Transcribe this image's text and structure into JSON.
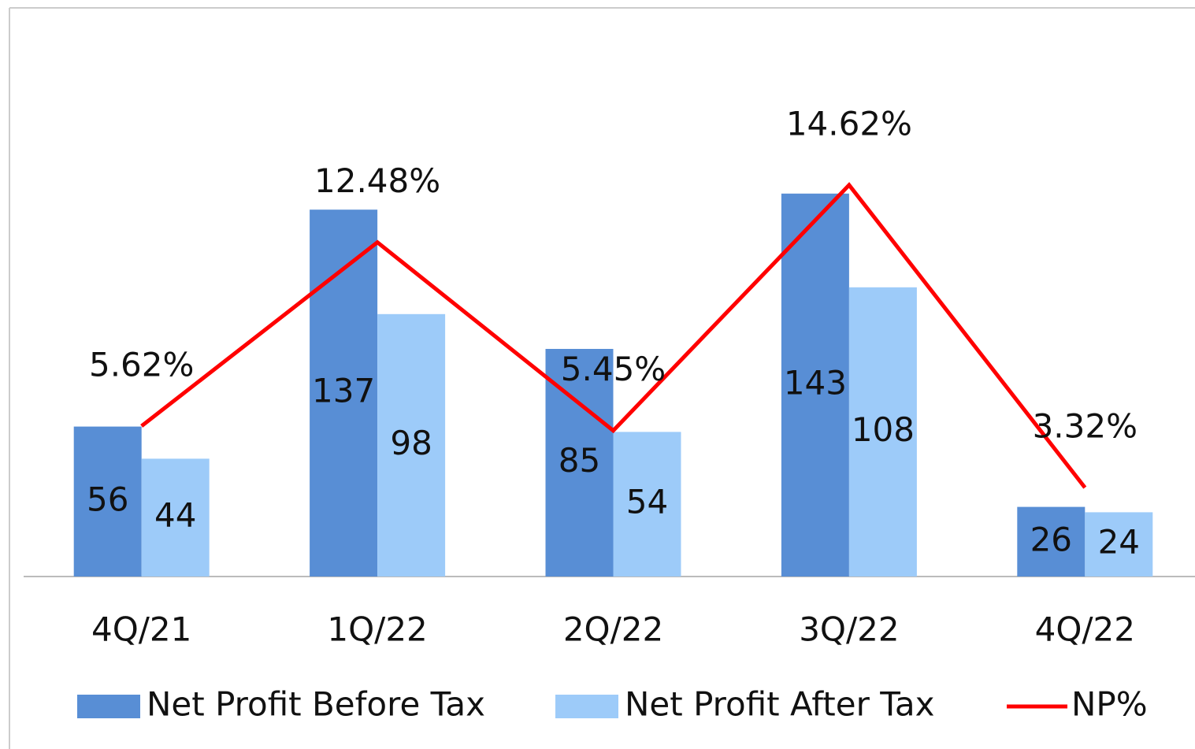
{
  "chart_data": {
    "type": "bar",
    "categories": [
      "4Q/21",
      "1Q/22",
      "2Q/22",
      "3Q/22",
      "4Q/22"
    ],
    "series": [
      {
        "name": "Net Profit Before Tax",
        "type": "bar",
        "color": "#588ed5",
        "values": [
          56,
          137,
          85,
          143,
          26
        ]
      },
      {
        "name": "Net Profit After Tax",
        "type": "bar",
        "color": "#9dcbf9",
        "values": [
          44,
          98,
          54,
          108,
          24
        ]
      },
      {
        "name": "NP%",
        "type": "line",
        "axis": "y2",
        "color": "#ff0000",
        "values": [
          5.62,
          12.48,
          5.45,
          14.62,
          3.32
        ],
        "value_labels": [
          "5.62%",
          "12.48%",
          "5.45%",
          "14.62%",
          "3.32%"
        ]
      }
    ],
    "ylim": [
      0,
      210
    ],
    "y2lim": [
      0,
      21
    ],
    "legend": "bottom"
  }
}
